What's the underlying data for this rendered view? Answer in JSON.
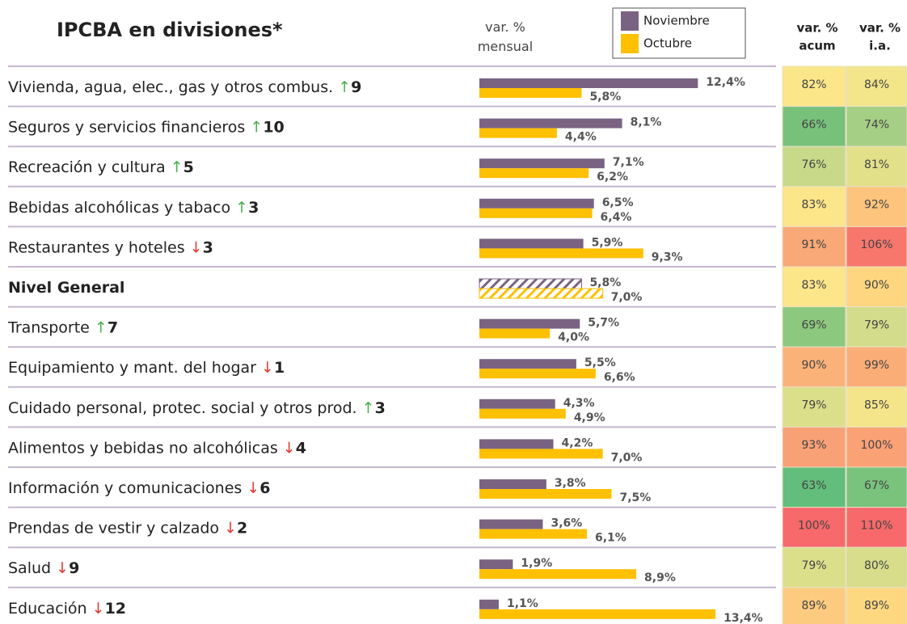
{
  "chart_data": {
    "type": "bar",
    "orientation": "horizontal",
    "title": "IPCBA en divisiones*",
    "value_axis_label": "var. % mensual",
    "categories": [
      "Vivienda, agua, elec., gas y otros combus.",
      "Seguros y servicios financieros",
      "Recreación y cultura",
      "Bebidas alcohólicas y tabaco",
      "Restaurantes y hoteles",
      "Nivel General",
      "Transporte",
      "Equipamiento y mant. del hogar",
      "Cuidado personal, protec. social y otros prod.",
      "Alimentos y bebidas no alcohólicas",
      "Información y comunicaciones",
      "Prendas de vestir y calzado",
      "Salud",
      "Educación"
    ],
    "highlight": 5,
    "rank_arrows": [
      "↑",
      "↑",
      "↑",
      "↑",
      "↓",
      null,
      "↑",
      "↓",
      "↑",
      "↓",
      "↓",
      "↓",
      "↓",
      "↓"
    ],
    "rank_changes": [
      9,
      10,
      5,
      3,
      3,
      null,
      7,
      1,
      3,
      4,
      6,
      2,
      9,
      12
    ],
    "series": [
      {
        "name": "Noviembre",
        "color": "#7a6382",
        "values": [
          12.4,
          8.1,
          7.1,
          6.5,
          5.9,
          5.8,
          5.7,
          5.5,
          4.3,
          4.2,
          3.8,
          3.6,
          1.9,
          1.1
        ],
        "value_labels": [
          "12,4%",
          "8,1%",
          "7,1%",
          "6,5%",
          "5,9%",
          "5,8%",
          "5,7%",
          "5,5%",
          "4,3%",
          "4,2%",
          "3,8%",
          "3,6%",
          "1,9%",
          "1,1%"
        ]
      },
      {
        "name": "Octubre",
        "color": "#ffc000",
        "values": [
          5.8,
          4.4,
          6.2,
          6.4,
          9.3,
          7.0,
          4.0,
          6.6,
          4.9,
          7.0,
          7.5,
          6.1,
          8.9,
          13.4
        ],
        "value_labels": [
          "5,8%",
          "4,4%",
          "6,2%",
          "6,4%",
          "9,3%",
          "7,0%",
          "4,0%",
          "6,6%",
          "4,9%",
          "7,0%",
          "7,5%",
          "6,1%",
          "8,9%",
          "13,4%"
        ]
      }
    ],
    "columns": [
      {
        "name": [
          "var. %",
          "acum"
        ],
        "values": [
          82,
          66,
          76,
          83,
          91,
          83,
          69,
          90,
          79,
          93,
          63,
          100,
          79,
          89
        ],
        "value_labels": [
          "82%",
          "66%",
          "76%",
          "83%",
          "91%",
          "83%",
          "69%",
          "90%",
          "79%",
          "93%",
          "63%",
          "100%",
          "79%",
          "89%"
        ],
        "colors": [
          "#fbe68a",
          "#78c17b",
          "#c8da8a",
          "#fde58a",
          "#f9a877",
          "#fde58a",
          "#8cc87d",
          "#fbb279",
          "#dcdf8a",
          "#f9a176",
          "#63be7b",
          "#f8696b",
          "#dcdf8a",
          "#fccb7f"
        ]
      },
      {
        "name": [
          "var. %",
          "i.a."
        ],
        "values": [
          84,
          74,
          81,
          92,
          106,
          90,
          79,
          99,
          85,
          100,
          67,
          110,
          80,
          89
        ],
        "value_labels": [
          "84%",
          "74%",
          "81%",
          "92%",
          "106%",
          "90%",
          "79%",
          "99%",
          "85%",
          "100%",
          "67%",
          "110%",
          "80%",
          "89%"
        ],
        "colors": [
          "#f2e58a",
          "#a6cf86",
          "#e3e08a",
          "#fcc47d",
          "#f8776d",
          "#fed680",
          "#d3dc8a",
          "#fbad78",
          "#f5e58a",
          "#fba176",
          "#79c37c",
          "#f8696b",
          "#d7dd8a",
          "#fdd881"
        ]
      }
    ]
  }
}
